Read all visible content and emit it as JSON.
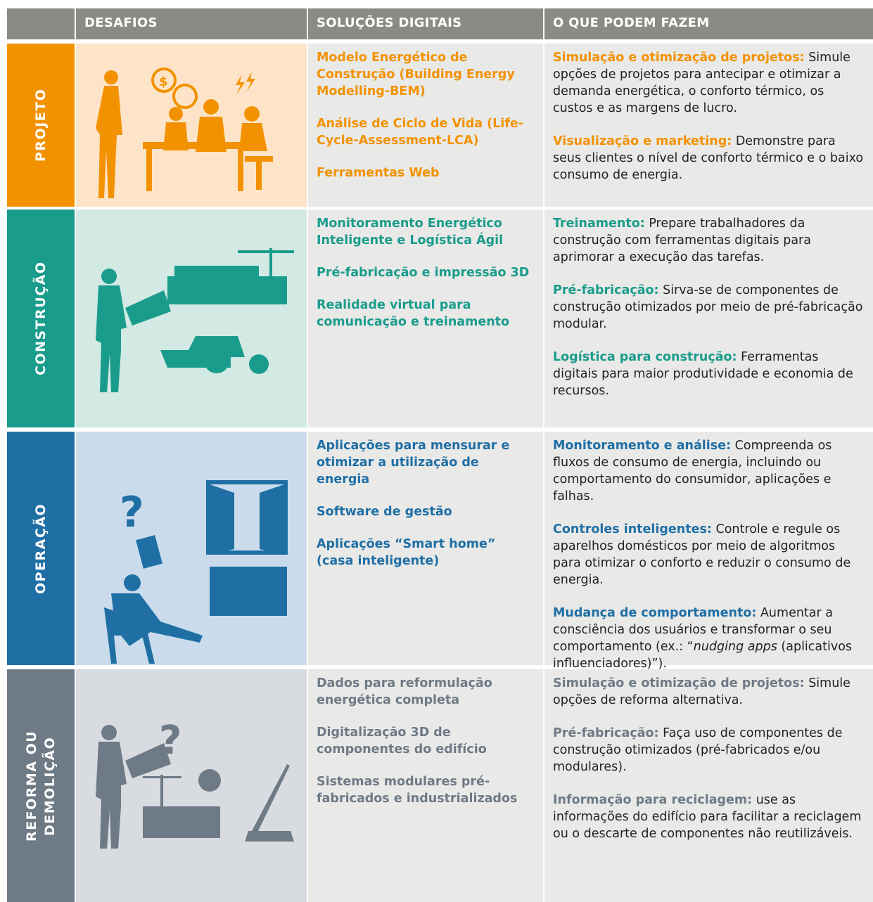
{
  "header": {
    "columns": [
      "DESAFIOS",
      "SOLUÇÕES DIGITAIS",
      "O QUE PODEM FAZEM"
    ]
  },
  "rows": [
    {
      "label": "PROJETO",
      "solutions": [
        "Modelo Energético de Construção (Building Energy Modelling-BEM)",
        "Análise de Ciclo de Vida (Life-Cycle-Assessment-LCA)",
        "Ferramentas Web"
      ],
      "items": [
        {
          "title": "Simulação e otimização de projetos:",
          "text": [
            "Simule opções de projetos para antecipar e otimizar a demanda energética, o conforto térmico, os custos e as margens de lucro."
          ]
        },
        {
          "title": "Visualização e marketing:",
          "text": [
            "Demonstre para seus clientes o nível de conforto térmico e o baixo consumo de energia."
          ]
        }
      ]
    },
    {
      "label": "CONSTRUÇÃO",
      "solutions": [
        "Monitoramento Energético Inteligente e Logística Ágil",
        "Pré-fabricação e impressão 3D",
        "Realidade virtual para comunicação e treinamento"
      ],
      "items": [
        {
          "title": "Treinamento:",
          "text": [
            "Prepare trabalhadores da construção com ferramentas digitais para aprimorar a execução das tarefas."
          ]
        },
        {
          "title": "Pré-fabricação:",
          "text": [
            "Sirva-se de componentes de construção otimizados por meio de pré-fabricação modular."
          ]
        },
        {
          "title": "Logística para construção:",
          "text": [
            "Ferramentas digitais para maior produtividade e economia de recursos."
          ]
        }
      ]
    },
    {
      "label": "OPERAÇÃO",
      "solutions": [
        "Aplicações para mensurar e otimizar a utilização de energia",
        "Software de gestão",
        "Aplicações “Smart home” (casa inteligente)"
      ],
      "items": [
        {
          "title": "Monitoramento e análise:",
          "text": [
            "Compreenda os fluxos de consumo de energia, incluindo ou comportamento do consumidor, aplicações e falhas."
          ]
        },
        {
          "title": "Controles inteligentes:",
          "text": [
            "Controle e regule os aparelhos domésticos por meio de algoritmos para otimizar o conforto e reduzir o consumo de energia."
          ]
        },
        {
          "title": "Mudança de comportamento:",
          "text": [
            "Aumentar a consciência dos usuários e transformar o seu comportamento (ex.: “",
            "nudging apps",
            " (aplicativos influenciadores)”)."
          ]
        }
      ]
    },
    {
      "label": "REFORMA OU DEMOLIÇÃO",
      "solutions": [
        "Dados para reformulação energética completa",
        "Digitalização 3D de componentes do edifício",
        "Sistemas modulares pré-fabricados e industrializados"
      ],
      "items": [
        {
          "title": "Simulação e otimização de projetos:",
          "text": [
            "Simule opções de reforma alternativa."
          ]
        },
        {
          "title": "Pré-fabricação:",
          "text": [
            "Faça uso de componentes de construção otimizados (pré-fabricados e/ou modulares)."
          ]
        },
        {
          "title": "Informação para reciclagem:",
          "text": [
            "use as informações do edifício para facilitar a reciclagem ou o descarte de componentes não reutilizáveis."
          ]
        }
      ]
    }
  ]
}
